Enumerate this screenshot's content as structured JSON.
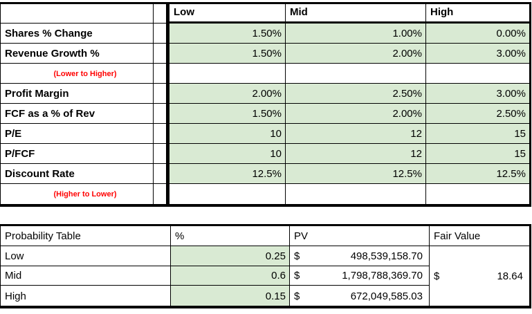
{
  "colors": {
    "green_fill": "#d9ead3",
    "note_red": "#ff0000",
    "border_black": "#000000"
  },
  "top_table": {
    "headers": [
      "Low",
      "Mid",
      "High"
    ],
    "rows": [
      {
        "type": "data",
        "label": "Shares % Change",
        "low": "1.50%",
        "mid": "1.00%",
        "high": "0.00%"
      },
      {
        "type": "data",
        "label": "Revenue Growth %",
        "low": "1.50%",
        "mid": "2.00%",
        "high": "3.00%"
      },
      {
        "type": "note",
        "label": "(Lower to Higher)"
      },
      {
        "type": "data",
        "label": "Profit Margin",
        "low": "2.00%",
        "mid": "2.50%",
        "high": "3.00%"
      },
      {
        "type": "data",
        "label": "FCF as a % of Rev",
        "low": "1.50%",
        "mid": "2.00%",
        "high": "2.50%"
      },
      {
        "type": "data",
        "label": "P/E",
        "low": "10",
        "mid": "12",
        "high": "15"
      },
      {
        "type": "data",
        "label": "P/FCF",
        "low": "10",
        "mid": "12",
        "high": "15"
      },
      {
        "type": "data",
        "label": "Discount Rate",
        "low": "12.5%",
        "mid": "12.5%",
        "high": "12.5%"
      },
      {
        "type": "note",
        "label": "(Higher to Lower)"
      }
    ]
  },
  "probability_table": {
    "headers": {
      "label": "Probability Table",
      "pct": "%",
      "pv": "PV",
      "fair_value": "Fair Value"
    },
    "rows": [
      {
        "label": "Low",
        "pct": "0.25",
        "currency": "$",
        "pv": "498,539,158.70"
      },
      {
        "label": "Mid",
        "pct": "0.6",
        "currency": "$",
        "pv": "1,798,788,369.70"
      },
      {
        "label": "High",
        "pct": "0.15",
        "currency": "$",
        "pv": "672,049,585.03"
      }
    ],
    "fair_value": {
      "currency": "$",
      "value": "18.64"
    }
  }
}
